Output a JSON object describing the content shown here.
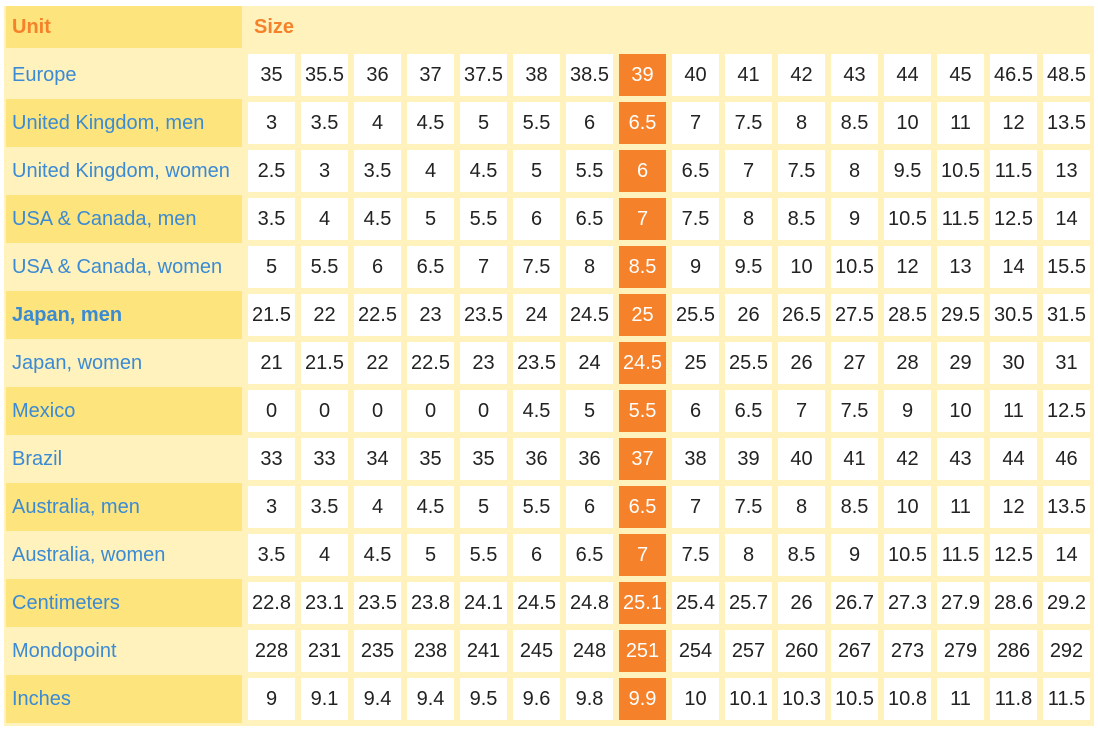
{
  "header": {
    "unit": "Unit",
    "size": "Size"
  },
  "highlight_column": 7,
  "colors": {
    "label": "#3a8ad4",
    "header": "#f5822a",
    "highlight": "#f5822a",
    "row_dark": "#fde47c",
    "background": "#fff2bd"
  },
  "rows": [
    {
      "label": "Europe",
      "values": [
        "35",
        "35.5",
        "36",
        "37",
        "37.5",
        "38",
        "38.5",
        "39",
        "40",
        "41",
        "42",
        "43",
        "44",
        "45",
        "46.5",
        "48.5"
      ]
    },
    {
      "label": "United Kingdom, men",
      "values": [
        "3",
        "3.5",
        "4",
        "4.5",
        "5",
        "5.5",
        "6",
        "6.5",
        "7",
        "7.5",
        "8",
        "8.5",
        "10",
        "11",
        "12",
        "13.5"
      ]
    },
    {
      "label": "United Kingdom, women",
      "values": [
        "2.5",
        "3",
        "3.5",
        "4",
        "4.5",
        "5",
        "5.5",
        "6",
        "6.5",
        "7",
        "7.5",
        "8",
        "9.5",
        "10.5",
        "11.5",
        "13"
      ]
    },
    {
      "label": "USA & Canada, men",
      "values": [
        "3.5",
        "4",
        "4.5",
        "5",
        "5.5",
        "6",
        "6.5",
        "7",
        "7.5",
        "8",
        "8.5",
        "9",
        "10.5",
        "11.5",
        "12.5",
        "14"
      ]
    },
    {
      "label": "USA & Canada, women",
      "values": [
        "5",
        "5.5",
        "6",
        "6.5",
        "7",
        "7.5",
        "8",
        "8.5",
        "9",
        "9.5",
        "10",
        "10.5",
        "12",
        "13",
        "14",
        "15.5"
      ]
    },
    {
      "label": "Japan, men",
      "bold": true,
      "values": [
        "21.5",
        "22",
        "22.5",
        "23",
        "23.5",
        "24",
        "24.5",
        "25",
        "25.5",
        "26",
        "26.5",
        "27.5",
        "28.5",
        "29.5",
        "30.5",
        "31.5"
      ]
    },
    {
      "label": "Japan, women",
      "values": [
        "21",
        "21.5",
        "22",
        "22.5",
        "23",
        "23.5",
        "24",
        "24.5",
        "25",
        "25.5",
        "26",
        "27",
        "28",
        "29",
        "30",
        "31"
      ]
    },
    {
      "label": "Mexico",
      "values": [
        "0",
        "0",
        "0",
        "0",
        "0",
        "4.5",
        "5",
        "5.5",
        "6",
        "6.5",
        "7",
        "7.5",
        "9",
        "10",
        "11",
        "12.5"
      ]
    },
    {
      "label": "Brazil",
      "values": [
        "33",
        "33",
        "34",
        "35",
        "35",
        "36",
        "36",
        "37",
        "38",
        "39",
        "40",
        "41",
        "42",
        "43",
        "44",
        "46"
      ]
    },
    {
      "label": "Australia, men",
      "values": [
        "3",
        "3.5",
        "4",
        "4.5",
        "5",
        "5.5",
        "6",
        "6.5",
        "7",
        "7.5",
        "8",
        "8.5",
        "10",
        "11",
        "12",
        "13.5"
      ]
    },
    {
      "label": "Australia, women",
      "values": [
        "3.5",
        "4",
        "4.5",
        "5",
        "5.5",
        "6",
        "6.5",
        "7",
        "7.5",
        "8",
        "8.5",
        "9",
        "10.5",
        "11.5",
        "12.5",
        "14"
      ]
    },
    {
      "label": "Centimeters",
      "values": [
        "22.8",
        "23.1",
        "23.5",
        "23.8",
        "24.1",
        "24.5",
        "24.8",
        "25.1",
        "25.4",
        "25.7",
        "26",
        "26.7",
        "27.3",
        "27.9",
        "28.6",
        "29.2"
      ]
    },
    {
      "label": "Mondopoint",
      "values": [
        "228",
        "231",
        "235",
        "238",
        "241",
        "245",
        "248",
        "251",
        "254",
        "257",
        "260",
        "267",
        "273",
        "279",
        "286",
        "292"
      ]
    },
    {
      "label": "Inches",
      "values": [
        "9",
        "9.1",
        "9.4",
        "9.4",
        "9.5",
        "9.6",
        "9.8",
        "9.9",
        "10",
        "10.1",
        "10.3",
        "10.5",
        "10.8",
        "11",
        "11.8",
        "11.5"
      ]
    }
  ]
}
